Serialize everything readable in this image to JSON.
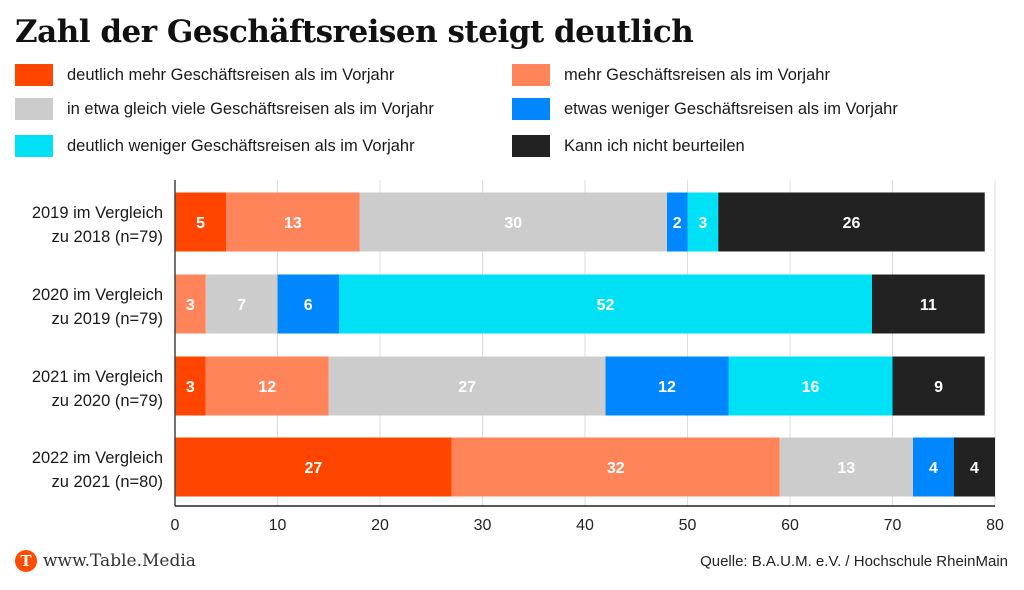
{
  "chart_data": {
    "type": "bar",
    "orientation": "horizontal",
    "stacked": true,
    "title": "Zahl der Geschäftsreisen steigt deutlich",
    "categories": [
      [
        "2019 im Vergleich",
        "zu 2018 (n=79)"
      ],
      [
        "2020 im Vergleich",
        "zu 2019 (n=79)"
      ],
      [
        "2021 im Vergleich",
        "zu 2020 (n=79)"
      ],
      [
        "2022 im Vergleich",
        "zu 2021 (n=80)"
      ]
    ],
    "series": [
      {
        "name": "deutlich mehr Geschäftsreisen als im Vorjahr",
        "color": "#ff4500",
        "values": [
          5,
          0,
          3,
          27
        ]
      },
      {
        "name": "mehr Geschäftsreisen als im Vorjahr",
        "color": "#ff845a",
        "values": [
          13,
          3,
          12,
          32
        ]
      },
      {
        "name": "in etwa gleich viele Geschäftsreisen als im Vorjahr",
        "color": "#cccccc",
        "values": [
          30,
          7,
          27,
          13
        ]
      },
      {
        "name": "etwas weniger Geschäftsreisen als im Vorjahr",
        "color": "#0087ff",
        "values": [
          2,
          6,
          12,
          4
        ]
      },
      {
        "name": "deutlich weniger Geschäftsreisen als im Vorjahr",
        "color": "#00e1f5",
        "values": [
          3,
          52,
          16,
          0
        ]
      },
      {
        "name": "Kann ich nicht beurteilen",
        "color": "#222222",
        "values": [
          26,
          11,
          9,
          4
        ]
      }
    ],
    "xlabel": "",
    "ylabel": "",
    "xlim": [
      0,
      80
    ],
    "xticks": [
      0,
      10,
      20,
      30,
      40,
      50,
      60,
      70,
      80
    ],
    "grid": true,
    "legend_position": "top"
  },
  "footer": {
    "logo_letter": "T",
    "site": "www.Table.Media",
    "source": "Quelle: B.A.U.M. e.V. / Hochschule RheinMain"
  }
}
